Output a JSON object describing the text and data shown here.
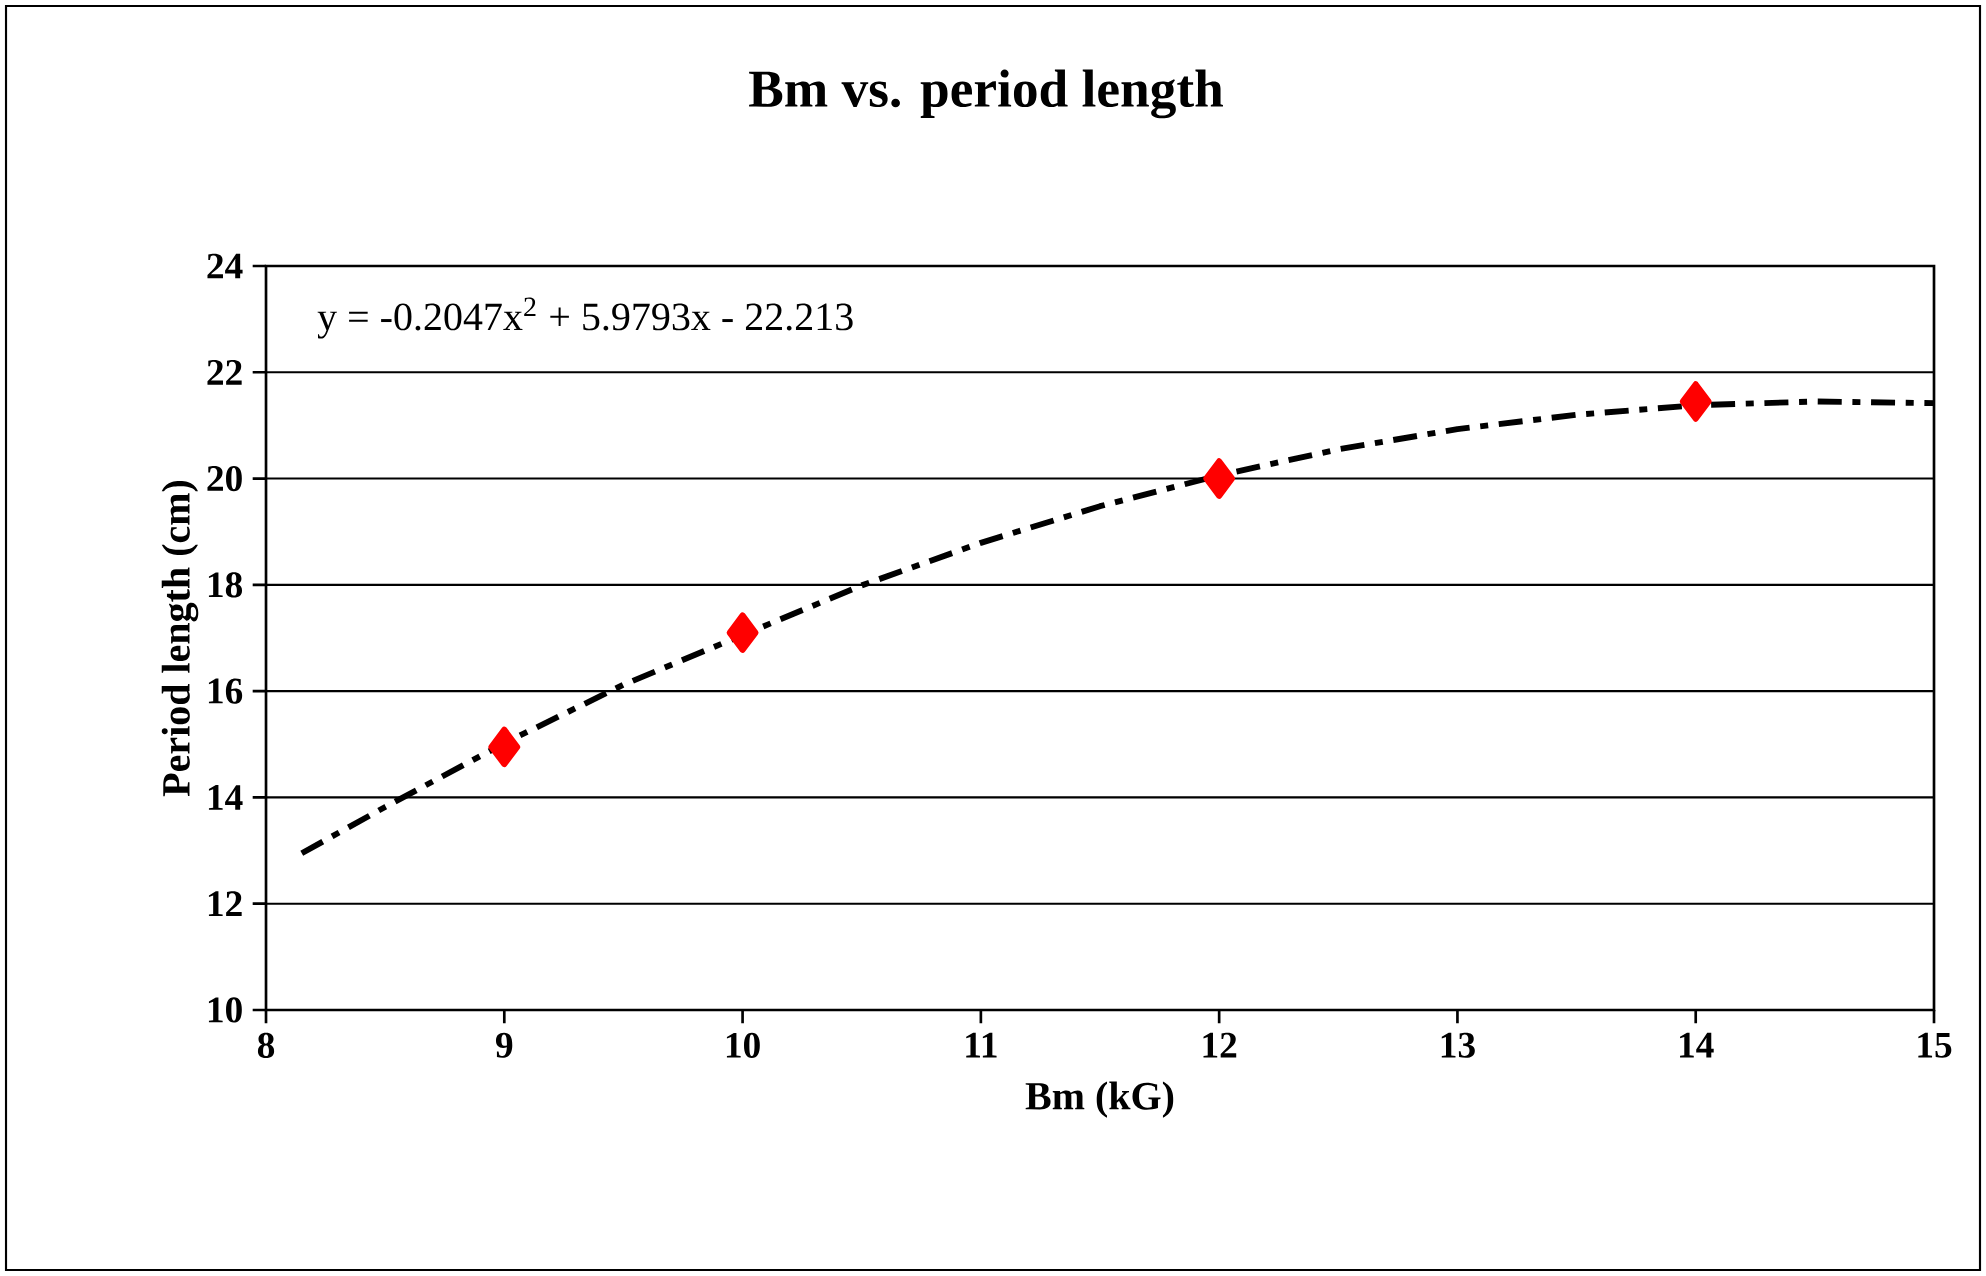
{
  "chart_data": {
    "type": "scatter",
    "title": "Bm vs. period length",
    "xlabel": "Bm (kG)",
    "ylabel": "Period length (cm)",
    "annotations": [
      "y = -0.2047x$^{2}$ + 5.9793x - 22.213"
    ],
    "xlim": [
      8,
      15
    ],
    "xticks": [
      8,
      9,
      10,
      11,
      12,
      13,
      14,
      15
    ],
    "ylim": [
      10,
      24
    ],
    "yticks": [
      10,
      12,
      14,
      16,
      18,
      20,
      22,
      24
    ],
    "grid": "y",
    "series": [
      {
        "color": "#ff0000",
        "marker": "diamond",
        "x": [
          9,
          10,
          12,
          14
        ],
        "values": [
          14.95,
          17.1,
          20.0,
          21.45
        ]
      },
      {
        "type": "line",
        "color": "#000000",
        "marker": "none",
        "line_style": "dashed",
        "x": [
          8.15,
          8.5,
          9,
          9.5,
          10.5,
          11,
          11.5,
          12,
          12.5,
          13,
          13.5,
          14,
          14.5,
          15
        ],
        "values": [
          12.95,
          13.82,
          15.02,
          16.12,
          17.99,
          18.79,
          19.48,
          20.06,
          20.55,
          20.93,
          21.2,
          21.38,
          21.45,
          21.42
        ]
      }
    ]
  }
}
